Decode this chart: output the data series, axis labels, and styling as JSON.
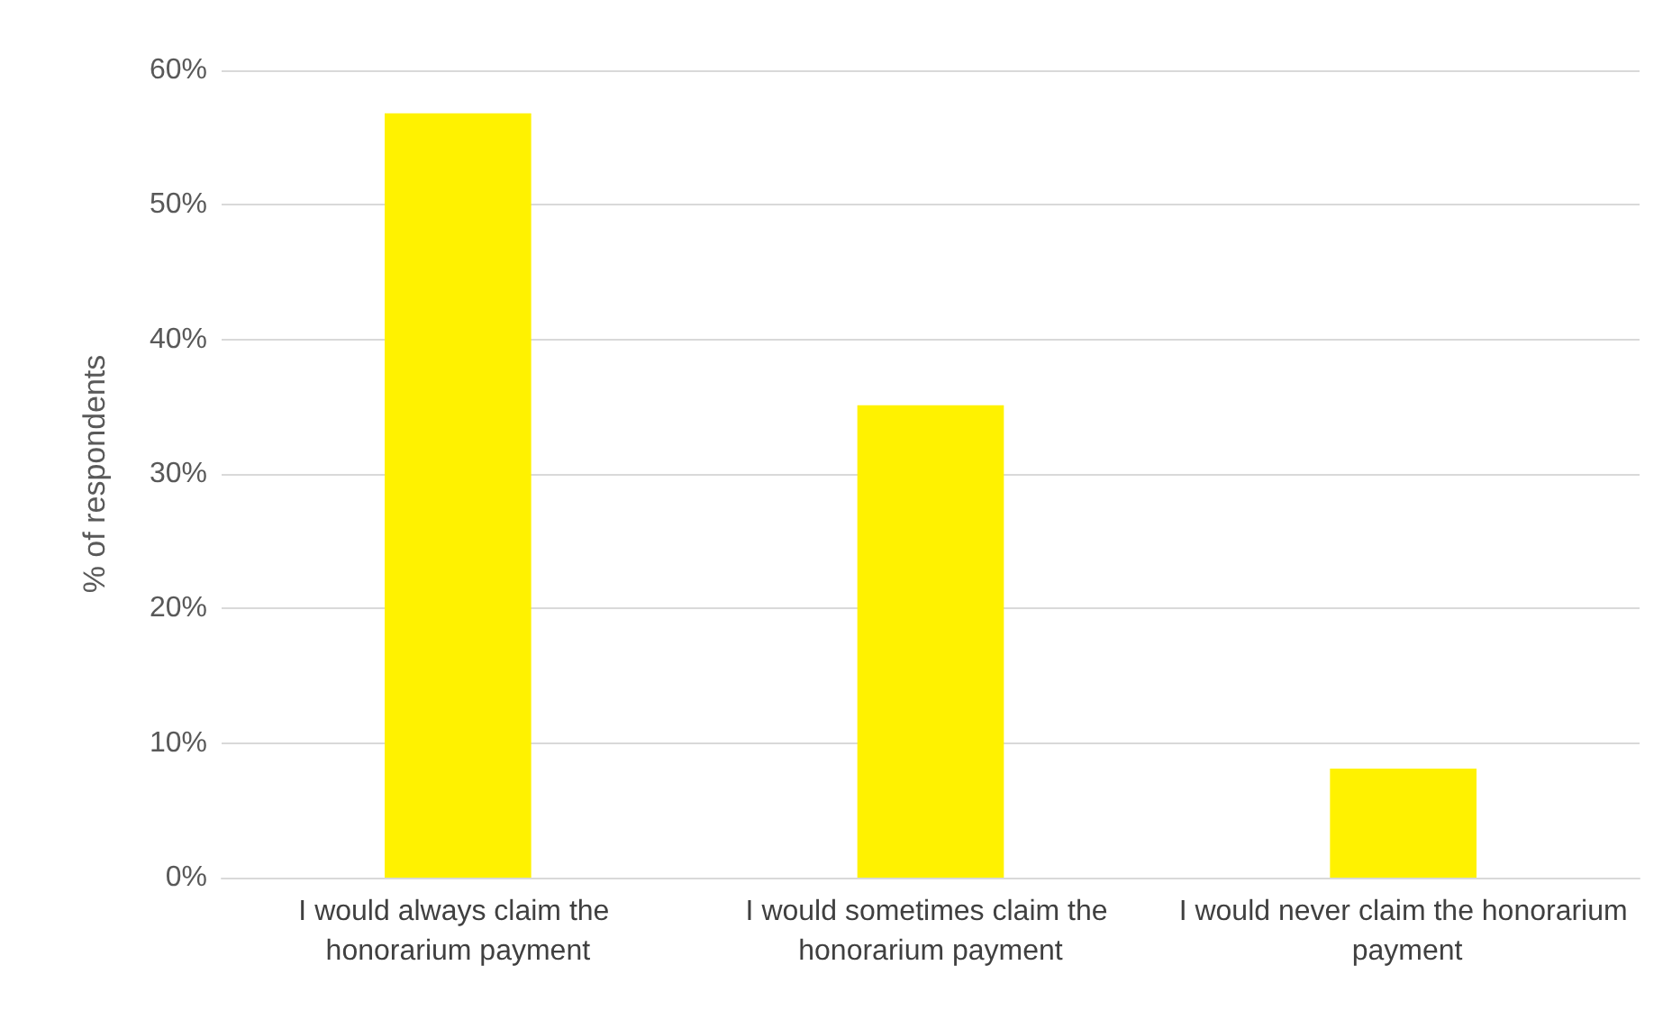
{
  "chart_data": {
    "type": "bar",
    "ylabel": "% of respondents",
    "categories": [
      "I would always claim the honorarium payment",
      "I would sometimes claim the honorarium payment",
      "I would never claim the honorarium payment"
    ],
    "values": [
      56.8,
      35.1,
      8.1
    ],
    "color": "#fff200",
    "ylim": [
      0,
      60
    ],
    "yticks": [
      {
        "value": 0,
        "label": "0%"
      },
      {
        "value": 10,
        "label": "10%"
      },
      {
        "value": 20,
        "label": "20%"
      },
      {
        "value": 30,
        "label": "30%"
      },
      {
        "value": 40,
        "label": "40%"
      },
      {
        "value": 50,
        "label": "50%"
      },
      {
        "value": 60,
        "label": "60%"
      }
    ],
    "grid": true
  }
}
